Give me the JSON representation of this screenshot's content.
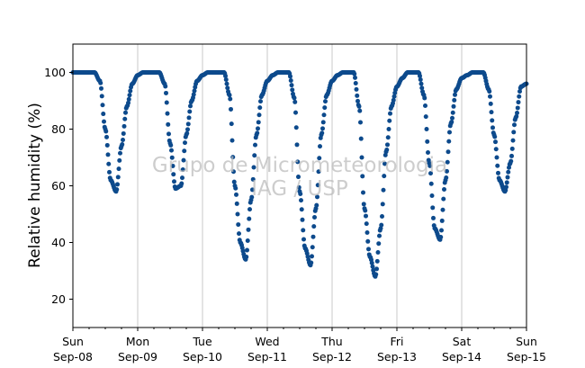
{
  "chart_data": {
    "type": "scatter",
    "title": "",
    "xlabel": "",
    "ylabel": "Relative humidity (%)",
    "ylim": [
      10,
      110
    ],
    "yticks": [
      20,
      40,
      60,
      80,
      100
    ],
    "xlim": [
      "2019-09-08",
      "2019-09-15"
    ],
    "xticks": [
      {
        "date": "2019-09-08",
        "day": "Sun",
        "label": "Sep-08"
      },
      {
        "date": "2019-09-09",
        "day": "Mon",
        "label": "Sep-09"
      },
      {
        "date": "2019-09-10",
        "day": "Tue",
        "label": "Sep-10"
      },
      {
        "date": "2019-09-11",
        "day": "Wed",
        "label": "Sep-11"
      },
      {
        "date": "2019-09-12",
        "day": "Thu",
        "label": "Sep-12"
      },
      {
        "date": "2019-09-13",
        "day": "Fri",
        "label": "Sep-13"
      },
      {
        "date": "2019-09-14",
        "day": "Sat",
        "label": "Sep-14"
      },
      {
        "date": "2019-09-15",
        "day": "Sun",
        "label": "Sep-15"
      }
    ],
    "grid": "x-major",
    "watermark": [
      "Grupo de Micrometeorologia",
      "IAG / USP"
    ],
    "series": [
      {
        "color": "#0d4a8c",
        "x": [
          "2019-09-08 00:00",
          "2019-09-08 02:00",
          "2019-09-08 04:00",
          "2019-09-08 06:00",
          "2019-09-08 08:00",
          "2019-09-08 10:00",
          "2019-09-08 12:00",
          "2019-09-08 14:00",
          "2019-09-08 16:00",
          "2019-09-08 18:00",
          "2019-09-08 20:00",
          "2019-09-08 22:00",
          "2019-09-09 00:00",
          "2019-09-09 02:00",
          "2019-09-09 04:00",
          "2019-09-09 06:00",
          "2019-09-09 08:00",
          "2019-09-09 10:00",
          "2019-09-09 12:00",
          "2019-09-09 14:00",
          "2019-09-09 16:00",
          "2019-09-09 18:00",
          "2019-09-09 20:00",
          "2019-09-09 22:00",
          "2019-09-10 00:00",
          "2019-09-10 02:00",
          "2019-09-10 04:00",
          "2019-09-10 06:00",
          "2019-09-10 08:00",
          "2019-09-10 10:00",
          "2019-09-10 12:00",
          "2019-09-10 14:00",
          "2019-09-10 16:00",
          "2019-09-10 18:00",
          "2019-09-10 20:00",
          "2019-09-10 22:00",
          "2019-09-11 00:00",
          "2019-09-11 02:00",
          "2019-09-11 04:00",
          "2019-09-11 06:00",
          "2019-09-11 08:00",
          "2019-09-11 10:00",
          "2019-09-11 12:00",
          "2019-09-11 14:00",
          "2019-09-11 16:00",
          "2019-09-11 18:00",
          "2019-09-11 20:00",
          "2019-09-11 22:00",
          "2019-09-12 00:00",
          "2019-09-12 02:00",
          "2019-09-12 04:00",
          "2019-09-12 06:00",
          "2019-09-12 08:00",
          "2019-09-12 10:00",
          "2019-09-12 12:00",
          "2019-09-12 14:00",
          "2019-09-12 16:00",
          "2019-09-12 18:00",
          "2019-09-12 20:00",
          "2019-09-12 22:00",
          "2019-09-13 00:00",
          "2019-09-13 02:00",
          "2019-09-13 04:00",
          "2019-09-13 06:00",
          "2019-09-13 08:00",
          "2019-09-13 10:00",
          "2019-09-13 12:00",
          "2019-09-13 14:00",
          "2019-09-13 16:00",
          "2019-09-13 18:00",
          "2019-09-13 20:00",
          "2019-09-13 22:00",
          "2019-09-14 00:00",
          "2019-09-14 02:00",
          "2019-09-14 04:00",
          "2019-09-14 06:00",
          "2019-09-14 08:00",
          "2019-09-14 10:00",
          "2019-09-14 12:00",
          "2019-09-14 14:00",
          "2019-09-14 16:00",
          "2019-09-14 18:00",
          "2019-09-14 20:00",
          "2019-09-14 22:00",
          "2019-09-15 00:00"
        ],
        "y": [
          100,
          100,
          100,
          100,
          100,
          97,
          80,
          62,
          58,
          74,
          88,
          96,
          99,
          100,
          100,
          100,
          100,
          96,
          75,
          59,
          60,
          78,
          90,
          97,
          99,
          100,
          100,
          100,
          100,
          92,
          60,
          40,
          34,
          55,
          78,
          92,
          97,
          99,
          100,
          100,
          100,
          91,
          58,
          38,
          32,
          52,
          78,
          92,
          97,
          99,
          100,
          100,
          100,
          88,
          52,
          35,
          28,
          45,
          72,
          88,
          95,
          98,
          100,
          100,
          100,
          92,
          68,
          45,
          41,
          62,
          82,
          94,
          98,
          99,
          100,
          100,
          100,
          94,
          78,
          62,
          58,
          68,
          84,
          95,
          96
        ]
      }
    ]
  }
}
